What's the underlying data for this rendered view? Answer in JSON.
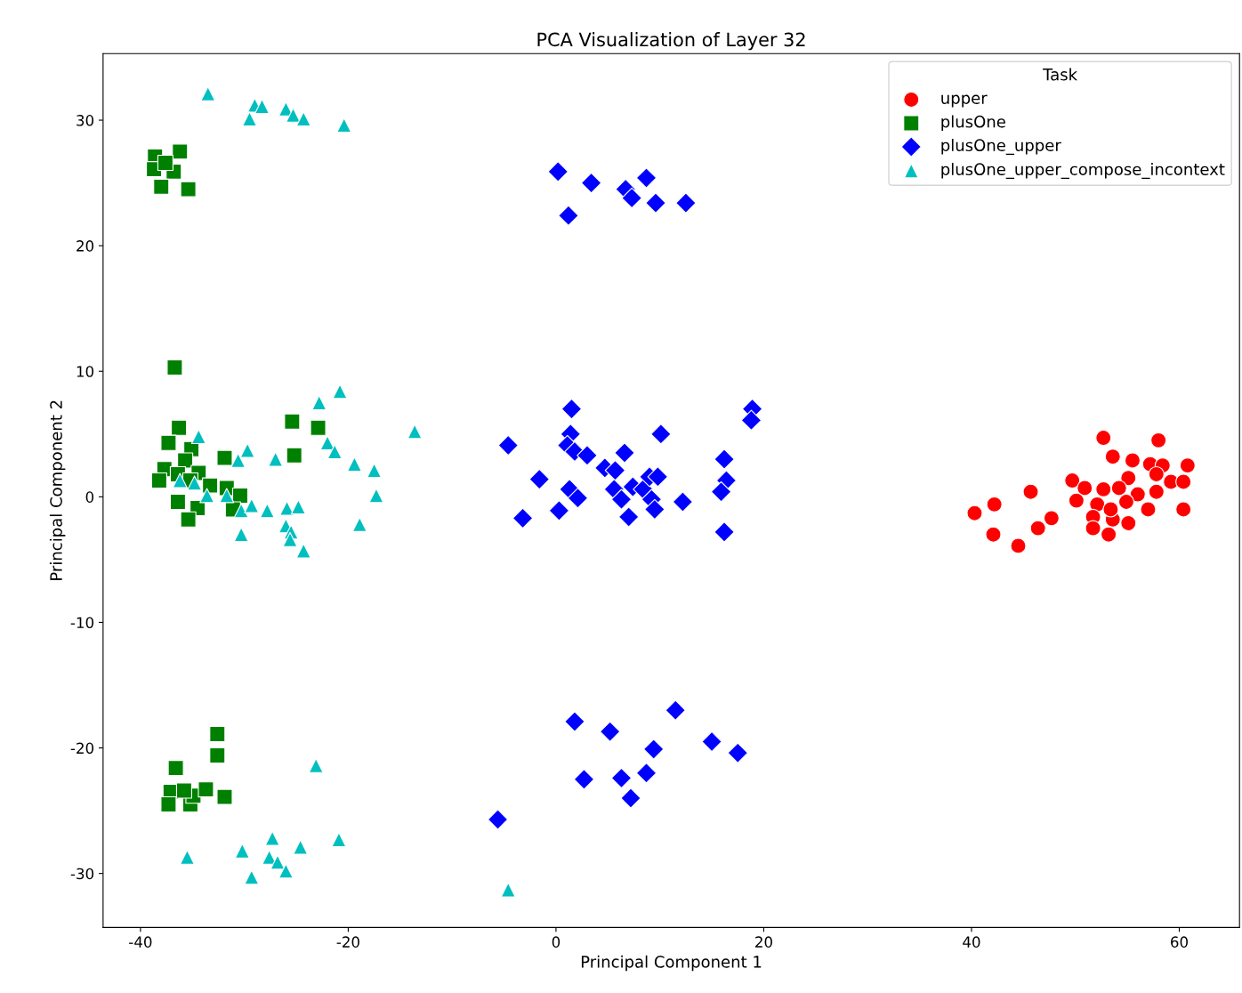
{
  "chart_data": {
    "type": "scatter",
    "title": "PCA Visualization of Layer 32",
    "xlabel": "Principal Component 1",
    "ylabel": "Principal Component 2",
    "legend_title": "Task",
    "legend": "top right",
    "grid": false,
    "xlim": [
      -43.6,
      65.8
    ],
    "ylim": [
      -34.3,
      35.3
    ],
    "xticks": [
      -40,
      -20,
      0,
      20,
      40,
      60
    ],
    "yticks": [
      -30,
      -20,
      -10,
      0,
      10,
      20,
      30
    ],
    "series": [
      {
        "name": "upper",
        "color": "#ff0000",
        "marker": "circle",
        "x": [
          40.3,
          42.2,
          42.1,
          44.5,
          45.7,
          46.4,
          47.7,
          49.7,
          52.7,
          53.6,
          55.5,
          58.0,
          57.2,
          58.4,
          60.8,
          59.2,
          60.4,
          60.4,
          57.8,
          55.1,
          54.2,
          52.7,
          52.1,
          50.9,
          51.7,
          51.7,
          53.2,
          53.6,
          56.0,
          57.0,
          57.8,
          54.9,
          53.4,
          55.1,
          50.1
        ],
        "values": [
          -1.3,
          -0.6,
          -3.0,
          -3.9,
          0.4,
          -2.5,
          -1.7,
          1.3,
          4.7,
          3.2,
          2.9,
          4.5,
          2.6,
          2.5,
          2.5,
          1.2,
          1.2,
          -1.0,
          1.8,
          1.5,
          0.7,
          0.6,
          -0.6,
          0.7,
          -1.6,
          -2.5,
          -3.0,
          -1.8,
          0.2,
          -1.0,
          0.4,
          -0.4,
          -1.0,
          -2.1,
          -0.3
        ]
      },
      {
        "name": "plusOne",
        "color": "#008000",
        "marker": "square",
        "x": [
          -38.6,
          -36.2,
          -38.7,
          -36.8,
          -38.0,
          -35.4,
          -37.6,
          -36.7,
          -36.3,
          -37.3,
          -35.1,
          -35.7,
          -37.7,
          -38.2,
          -36.4,
          -34.4,
          -31.9,
          -36.4,
          -34.5,
          -35.4,
          -31.7,
          -30.4,
          -31.1,
          -25.4,
          -22.9,
          -25.2,
          -33.3,
          -35.2,
          -32.6,
          -32.6,
          -36.6,
          -37.1,
          -37.3,
          -35.2,
          -34.9,
          -33.7,
          -31.9,
          -35.8
        ],
        "values": [
          27.1,
          27.5,
          26.1,
          25.9,
          24.7,
          24.5,
          26.6,
          10.3,
          5.5,
          4.3,
          3.8,
          2.9,
          2.2,
          1.3,
          1.8,
          1.9,
          3.1,
          -0.4,
          -0.9,
          -1.8,
          0.7,
          0.1,
          -1.0,
          6.0,
          5.5,
          3.3,
          0.9,
          1.3,
          -18.9,
          -20.6,
          -21.6,
          -23.5,
          -24.5,
          -24.5,
          -23.8,
          -23.3,
          -23.9,
          -23.4
        ]
      },
      {
        "name": "plusOne_upper",
        "color": "#0000ff",
        "marker": "diamond",
        "x": [
          0.2,
          3.4,
          6.7,
          7.3,
          8.7,
          9.6,
          12.5,
          1.2,
          -4.6,
          1.5,
          1.4,
          1.1,
          1.8,
          3.0,
          4.7,
          5.7,
          6.6,
          10.1,
          -1.6,
          -3.2,
          0.3,
          1.3,
          2.1,
          5.6,
          6.3,
          7.0,
          7.4,
          8.4,
          9.0,
          9.8,
          9.2,
          9.5,
          12.2,
          16.2,
          16.4,
          15.9,
          16.2,
          18.9,
          18.8,
          1.8,
          5.2,
          11.5,
          15.0,
          17.5,
          9.4,
          2.7,
          6.3,
          8.7,
          7.2,
          -5.6
        ],
        "values": [
          25.9,
          25.0,
          24.5,
          23.8,
          25.4,
          23.4,
          23.4,
          22.4,
          4.1,
          7.0,
          5.0,
          4.1,
          3.6,
          3.3,
          2.3,
          2.1,
          3.5,
          5.0,
          1.4,
          -1.7,
          -1.1,
          0.6,
          -0.1,
          0.6,
          -0.2,
          -1.6,
          0.8,
          0.6,
          1.6,
          1.6,
          -0.2,
          -1.0,
          -0.4,
          3.0,
          1.3,
          0.4,
          -2.8,
          7.0,
          6.1,
          -17.9,
          -18.7,
          -17.0,
          -19.5,
          -20.4,
          -20.1,
          -22.5,
          -22.4,
          -22.0,
          -24.0,
          -25.7
        ]
      },
      {
        "name": "plusOne_upper_compose_incontext",
        "color": "#00bfbf",
        "marker": "triangle",
        "x": [
          -33.5,
          -29.0,
          -28.3,
          -29.5,
          -26.0,
          -25.3,
          -24.3,
          -20.4,
          -34.4,
          -29.7,
          -30.6,
          -27.0,
          -22.8,
          -20.8,
          -22.0,
          -21.3,
          -19.4,
          -17.5,
          -17.3,
          -18.9,
          -36.2,
          -34.8,
          -33.6,
          -31.7,
          -30.3,
          -29.3,
          -27.8,
          -25.9,
          -24.8,
          -30.3,
          -26.0,
          -25.5,
          -25.6,
          -24.3,
          -13.6,
          -23.1,
          -20.9,
          -24.6,
          -27.3,
          -27.6,
          -26.8,
          -26.0,
          -30.2,
          -29.3,
          -35.5,
          -4.6
        ],
        "values": [
          32.1,
          31.2,
          31.1,
          30.1,
          30.9,
          30.4,
          30.1,
          29.6,
          4.8,
          3.7,
          2.9,
          3.0,
          7.5,
          8.4,
          4.3,
          3.6,
          2.6,
          2.1,
          0.1,
          -2.2,
          1.3,
          1.1,
          0.1,
          0.1,
          -1.1,
          -0.7,
          -1.1,
          -0.9,
          -0.8,
          -3.0,
          -2.3,
          -2.8,
          -3.4,
          -4.3,
          5.2,
          -21.4,
          -27.3,
          -27.9,
          -27.2,
          -28.7,
          -29.1,
          -29.8,
          -28.2,
          -30.3,
          -28.7,
          -31.3
        ]
      }
    ]
  }
}
